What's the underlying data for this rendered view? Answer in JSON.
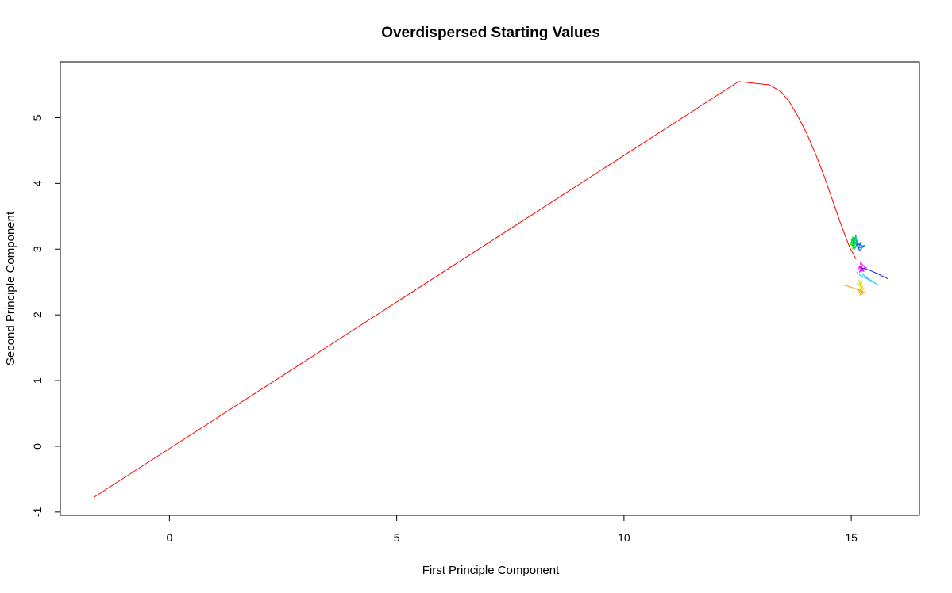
{
  "chart_data": {
    "type": "line",
    "title": "Overdispersed Starting Values",
    "xlabel": "First Principle Component",
    "ylabel": "Second Principle Component",
    "xlim": [
      -2.4,
      16.5
    ],
    "ylim": [
      -1.05,
      5.85
    ],
    "xticks": [
      0,
      5,
      10,
      15
    ],
    "xtick_labels": [
      "0",
      "5",
      "10",
      "15"
    ],
    "yticks": [
      -1,
      0,
      1,
      2,
      3,
      4,
      5
    ],
    "ytick_labels": [
      "-1",
      "0",
      "1",
      "2",
      "3",
      "4",
      "5"
    ],
    "grid": false,
    "legend": "none",
    "series": [
      {
        "color": "#ff0000",
        "x": [
          -1.65,
          12.52,
          13.2,
          13.45,
          13.63,
          13.82,
          14.02,
          14.22,
          14.42,
          14.6,
          14.75,
          14.88,
          14.97,
          15.05,
          15.1
        ],
        "y": [
          -0.77,
          5.55,
          5.5,
          5.4,
          5.25,
          5.03,
          4.76,
          4.44,
          4.08,
          3.72,
          3.42,
          3.18,
          3.02,
          2.92,
          2.85
        ]
      },
      {
        "color": "#00dd00",
        "x": [
          15.0,
          15.05,
          15.02,
          15.08,
          14.98,
          15.06,
          15.03,
          15.1,
          15.0,
          15.04,
          15.07,
          15.01,
          15.05
        ],
        "y": [
          3.12,
          3.05,
          3.18,
          3.02,
          3.08,
          3.2,
          3.0,
          3.1,
          3.15,
          3.04,
          3.14,
          3.06,
          3.09
        ]
      },
      {
        "color": "#00bfa0",
        "x": [
          15.05,
          15.12,
          15.08,
          15.15,
          15.06,
          15.1,
          15.13,
          15.07,
          15.11
        ],
        "y": [
          3.2,
          3.1,
          3.0,
          3.15,
          3.08,
          3.22,
          3.05,
          3.12,
          3.18
        ]
      },
      {
        "color": "#0070ff",
        "x": [
          15.1,
          15.2,
          15.15,
          15.25,
          15.12,
          15.18,
          15.3,
          15.14,
          15.22
        ],
        "y": [
          3.05,
          3.1,
          3.0,
          3.05,
          3.08,
          2.98,
          3.06,
          3.02,
          3.09
        ]
      },
      {
        "color": "#00c8ff",
        "x": [
          15.12,
          15.2,
          15.35,
          15.25,
          15.45,
          15.3,
          15.6
        ],
        "y": [
          2.65,
          2.6,
          2.55,
          2.62,
          2.5,
          2.58,
          2.45
        ]
      },
      {
        "color": "#ff00ff",
        "x": [
          15.15,
          15.25,
          15.18,
          15.3,
          15.2,
          15.22,
          15.28,
          15.16,
          15.24,
          15.35
        ],
        "y": [
          2.7,
          2.75,
          2.65,
          2.72,
          2.8,
          2.68,
          2.66,
          2.74,
          2.7,
          2.72
        ]
      },
      {
        "color": "#2020c0",
        "x": [
          15.2,
          15.4,
          15.6,
          15.8
        ],
        "y": [
          2.72,
          2.68,
          2.62,
          2.55
        ]
      },
      {
        "color": "#d0e000",
        "x": [
          15.15,
          15.2,
          15.22,
          15.18,
          15.25,
          15.12,
          15.28,
          15.19,
          15.23,
          15.16
        ],
        "y": [
          2.55,
          2.45,
          2.38,
          2.5,
          2.42,
          2.48,
          2.4,
          2.35,
          2.52,
          2.44
        ]
      },
      {
        "color": "#ffa000",
        "x": [
          14.85,
          15.0,
          15.15,
          15.2,
          15.25,
          15.1,
          15.3,
          15.18
        ],
        "y": [
          2.45,
          2.42,
          2.38,
          2.32,
          2.36,
          2.4,
          2.34,
          2.3
        ]
      }
    ]
  }
}
